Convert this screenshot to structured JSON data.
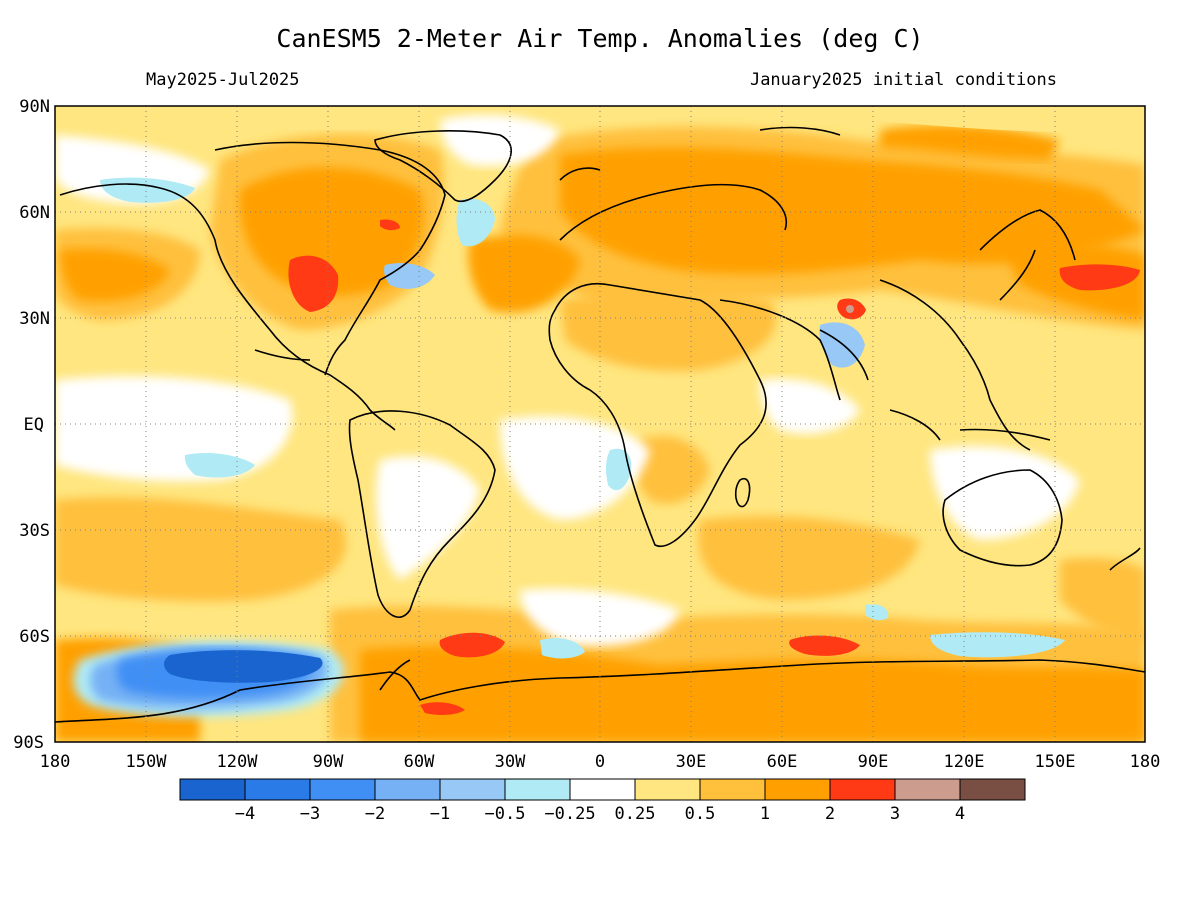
{
  "title": "CanESM5 2-Meter Air Temp. Anomalies (deg C)",
  "subtitle_left": "May2025-Jul2025",
  "subtitle_right": "January2025 initial conditions",
  "map": {
    "lat_ticks": [
      "90N",
      "60N",
      "30N",
      "EQ",
      "30S",
      "60S",
      "90S"
    ],
    "lon_ticks": [
      "180",
      "150W",
      "120W",
      "90W",
      "60W",
      "30W",
      "0",
      "30E",
      "60E",
      "90E",
      "120E",
      "150E",
      "180"
    ],
    "lat_range": [
      -90,
      90
    ],
    "lon_range": [
      -180,
      180
    ],
    "grid": "dotted"
  },
  "colorbar": {
    "colors": [
      "#1a64d0",
      "#2a7ae8",
      "#3f8ff5",
      "#76b1f5",
      "#98c8f5",
      "#b0ebf5",
      "#ffffff",
      "#ffe680",
      "#ffc03c",
      "#ffa000",
      "#ff3a14",
      "#cc9d8f",
      "#7a4f43"
    ],
    "labels": [
      "-4",
      "-3",
      "-2",
      "-1",
      "-0.5",
      "-0.25",
      "0.25",
      "0.5",
      "1",
      "2",
      "3",
      "4"
    ]
  },
  "colors": {
    "land_outline": "#000000",
    "background_anomaly": "#ffe680"
  }
}
